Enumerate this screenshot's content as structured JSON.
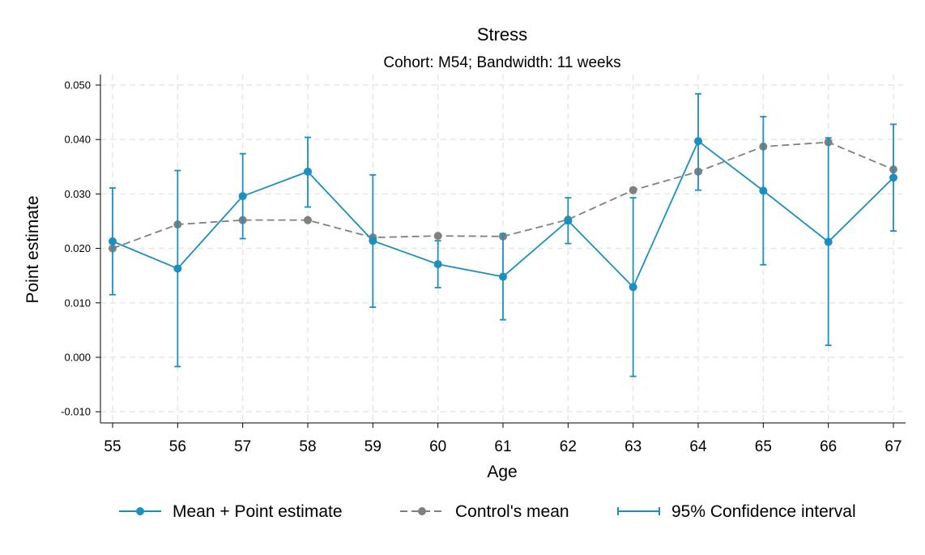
{
  "chart_data": {
    "type": "line",
    "title": "Stress",
    "subtitle": "Cohort: M54; Bandwidth: 11 weeks",
    "xlabel": "Age",
    "ylabel": "Point estimate",
    "x": [
      55,
      56,
      57,
      58,
      59,
      60,
      61,
      62,
      63,
      64,
      65,
      66,
      67
    ],
    "xlim": [
      55,
      67
    ],
    "ylim": [
      -0.012,
      0.052
    ],
    "yticks": [
      -0.01,
      0.0,
      0.01,
      0.02,
      0.03,
      0.04,
      0.05
    ],
    "ytick_labels": [
      "-0.010",
      "0.000",
      "0.010",
      "0.020",
      "0.030",
      "0.040",
      "0.050"
    ],
    "grid": true,
    "legend_position": "bottom",
    "series": [
      {
        "name": "Mean + Point estimate",
        "color": "#1a8fc0",
        "style": "solid",
        "values": [
          0.0213,
          0.0163,
          0.0296,
          0.0341,
          0.0214,
          0.0171,
          0.0148,
          0.0251,
          0.0129,
          0.0397,
          0.0306,
          0.0212,
          0.033
        ]
      },
      {
        "name": "Control's mean",
        "color": "#808080",
        "style": "dashed",
        "values": [
          0.02,
          0.0244,
          0.0252,
          0.0252,
          0.022,
          0.0223,
          0.0222,
          0.0253,
          0.0307,
          0.0341,
          0.0387,
          0.0395,
          0.0345
        ]
      }
    ],
    "confidence_interval": {
      "name": "95% Confidence interval",
      "color": "#1a8fc0",
      "lower": [
        0.0115,
        -0.0017,
        0.0218,
        0.0276,
        0.0092,
        0.0128,
        0.0069,
        0.0209,
        -0.0035,
        0.0307,
        0.017,
        0.0022,
        0.0232
      ],
      "upper": [
        0.0311,
        0.0343,
        0.0374,
        0.0404,
        0.0335,
        0.0214,
        0.0227,
        0.0293,
        0.0293,
        0.0484,
        0.0442,
        0.0403,
        0.0428
      ]
    }
  }
}
